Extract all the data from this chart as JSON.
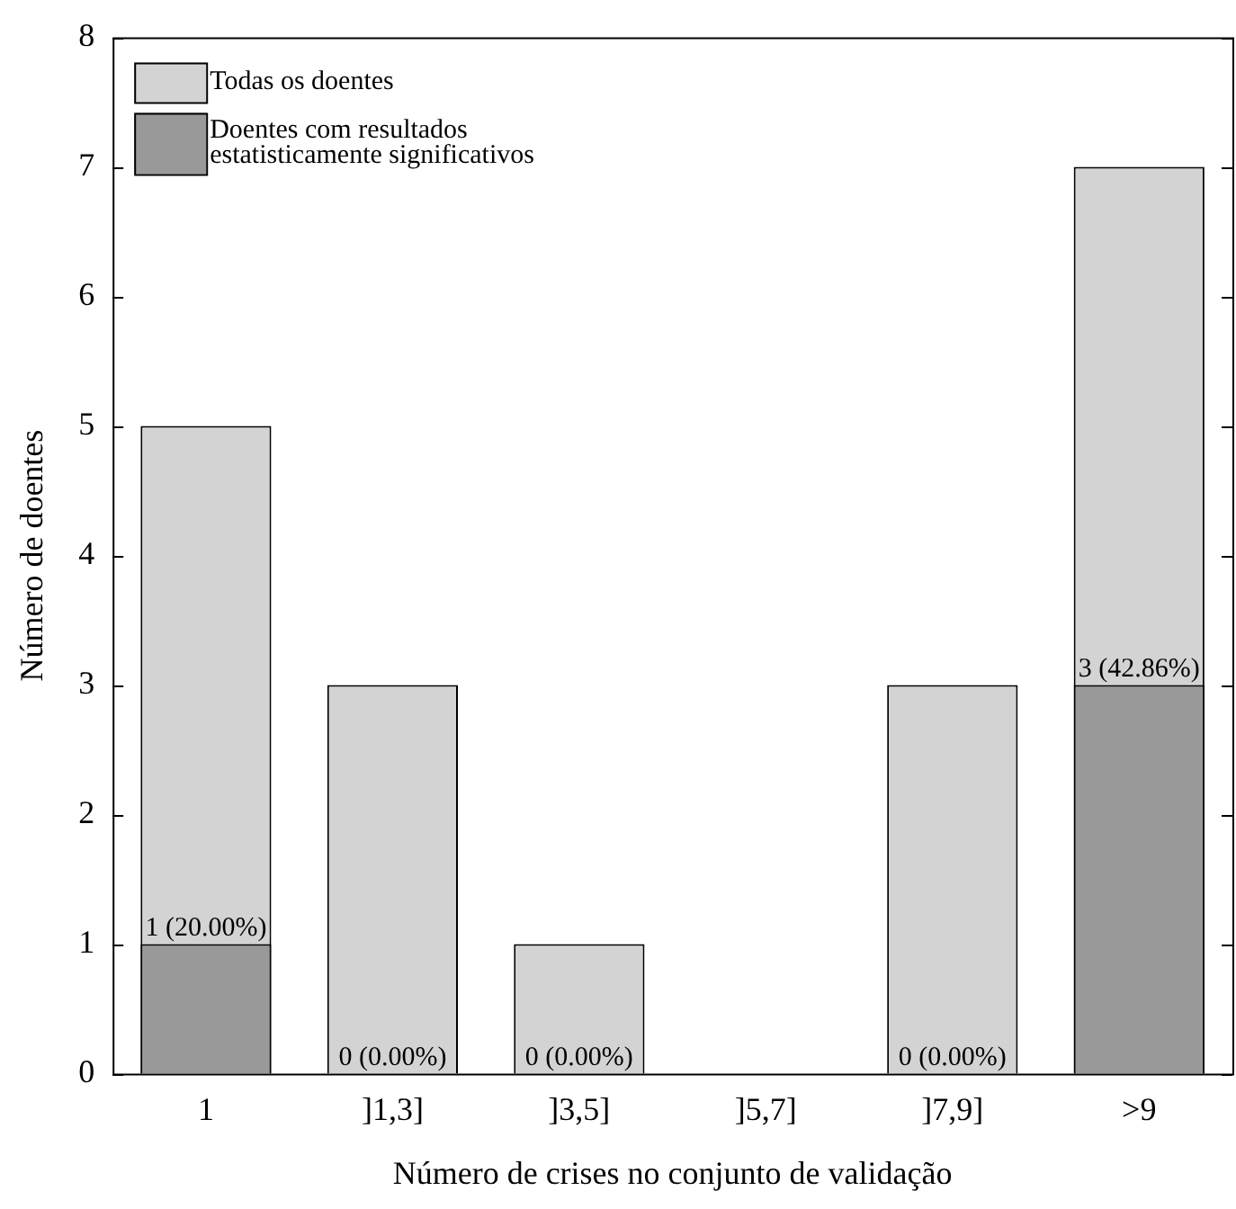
{
  "chart_data": {
    "type": "bar",
    "xlabel": "Número de crises no conjunto de validação",
    "ylabel": "Número de doentes",
    "categories": [
      "1",
      "]1,3]",
      "]3,5]",
      "]5,7]",
      "]7,9]",
      ">9"
    ],
    "series": [
      {
        "name": "Todas os doentes",
        "color": "#d3d3d3",
        "values": [
          5,
          3,
          1,
          0,
          3,
          7
        ]
      },
      {
        "name": "Doentes com resultados estatisticamente significativos",
        "color": "#999999",
        "values": [
          1,
          0,
          0,
          0,
          0,
          3
        ],
        "value_labels": [
          "1 (20.00%)",
          "0 (0.00%)",
          "0 (0.00%)",
          null,
          "0 (0.00%)",
          "3 (42.86%)"
        ]
      }
    ],
    "ylim": [
      0,
      8
    ],
    "yticks": [
      0,
      1,
      2,
      3,
      4,
      5,
      6,
      7,
      8
    ],
    "grid": false,
    "legend": "top left"
  }
}
